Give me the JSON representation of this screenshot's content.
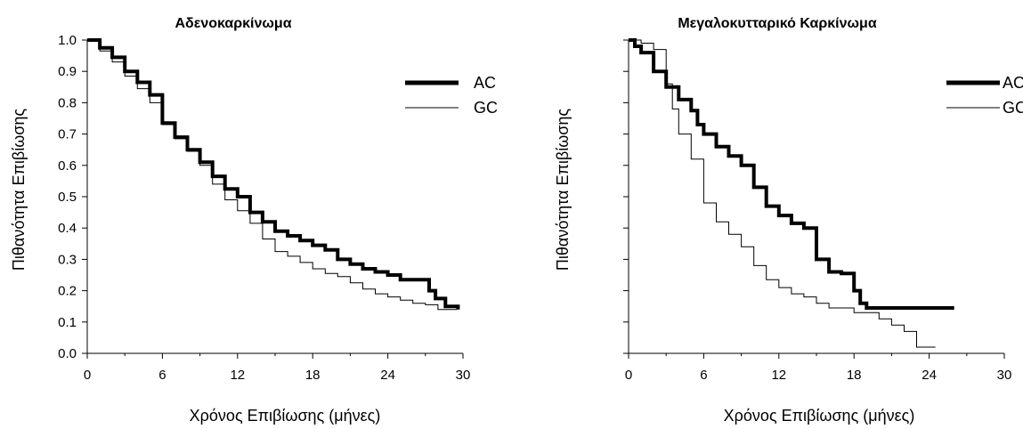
{
  "chart_data": [
    {
      "type": "line",
      "title": "Αδενοκαρκίνωμα",
      "xlabel": "Χρόνος Επιβίωσης (μήνες)",
      "ylabel": "Πιθανότητα Επιβίωσης",
      "xlim": [
        0,
        30
      ],
      "ylim": [
        0,
        1
      ],
      "xticks": [
        "0",
        "6",
        "12",
        "18",
        "24",
        "30"
      ],
      "yticks": [
        "0.0",
        "0.1",
        "0.2",
        "0.3",
        "0.4",
        "0.5",
        "0.6",
        "0.7",
        "0.8",
        "0.9",
        "1.0"
      ],
      "grid": false,
      "legend": "top-right",
      "series": [
        {
          "name": "AC",
          "color": "#000000",
          "x": [
            0,
            1,
            2,
            3,
            4,
            5,
            6,
            7,
            8,
            9,
            10,
            11,
            12,
            13,
            14,
            15,
            16,
            17,
            18,
            19,
            20,
            21,
            22,
            23,
            24,
            25,
            26,
            26.9,
            27.3,
            27.8,
            28.3,
            28.6,
            29.2,
            29.6
          ],
          "y": [
            1.0,
            0.975,
            0.945,
            0.9,
            0.865,
            0.825,
            0.735,
            0.69,
            0.65,
            0.61,
            0.565,
            0.525,
            0.5,
            0.45,
            0.42,
            0.39,
            0.375,
            0.36,
            0.345,
            0.33,
            0.3,
            0.285,
            0.27,
            0.26,
            0.25,
            0.235,
            0.235,
            0.235,
            0.2,
            0.175,
            0.175,
            0.15,
            0.15,
            0.14
          ]
        },
        {
          "name": "GC",
          "color": "#000000",
          "x": [
            0,
            1,
            2,
            3,
            4,
            5,
            6,
            7,
            8,
            9,
            10,
            11,
            12,
            13,
            14,
            15,
            16,
            17,
            18,
            19,
            20,
            21,
            22,
            23,
            24,
            25,
            26,
            27,
            28,
            29.5
          ],
          "y": [
            1.0,
            0.965,
            0.93,
            0.885,
            0.845,
            0.8,
            0.73,
            0.685,
            0.645,
            0.6,
            0.54,
            0.49,
            0.455,
            0.415,
            0.365,
            0.325,
            0.31,
            0.29,
            0.27,
            0.255,
            0.245,
            0.225,
            0.205,
            0.19,
            0.18,
            0.17,
            0.16,
            0.155,
            0.14,
            0.14
          ]
        }
      ]
    },
    {
      "type": "line",
      "title": "Μεγαλοκυτταρικό Καρκίνωμα",
      "xlabel": "Χρόνος Επιβίωσης (μήνες)",
      "ylabel": "Πιθανότητα Επιβίωσης",
      "xlim": [
        0,
        30
      ],
      "ylim": [
        0,
        1
      ],
      "xticks": [
        "0",
        "6",
        "12",
        "18",
        "24",
        "30"
      ],
      "yticks": [],
      "grid": false,
      "legend": "top-right",
      "series": [
        {
          "name": "AC",
          "color": "#000000",
          "x": [
            0,
            0.5,
            1,
            2,
            3,
            4,
            5,
            5.5,
            6,
            7,
            8,
            9,
            10,
            11,
            12,
            13,
            14,
            15,
            16,
            17,
            18,
            18.5,
            19,
            20,
            22,
            24,
            26
          ],
          "y": [
            1.0,
            0.98,
            0.96,
            0.9,
            0.85,
            0.81,
            0.775,
            0.73,
            0.7,
            0.66,
            0.63,
            0.6,
            0.53,
            0.47,
            0.44,
            0.415,
            0.4,
            0.3,
            0.26,
            0.255,
            0.2,
            0.16,
            0.145,
            0.145,
            0.145,
            0.145,
            0.145
          ]
        },
        {
          "name": "GC",
          "color": "#000000",
          "x": [
            0,
            1,
            2,
            3,
            3.5,
            4,
            5,
            6,
            7,
            8,
            9,
            10,
            11,
            12,
            13,
            14,
            15,
            16,
            18,
            20,
            21,
            22,
            23,
            23,
            24.5
          ],
          "y": [
            1.0,
            0.99,
            0.97,
            0.86,
            0.78,
            0.7,
            0.62,
            0.48,
            0.42,
            0.38,
            0.34,
            0.28,
            0.235,
            0.21,
            0.19,
            0.18,
            0.16,
            0.145,
            0.13,
            0.11,
            0.09,
            0.07,
            0.06,
            0.02,
            0.02
          ]
        }
      ]
    }
  ]
}
